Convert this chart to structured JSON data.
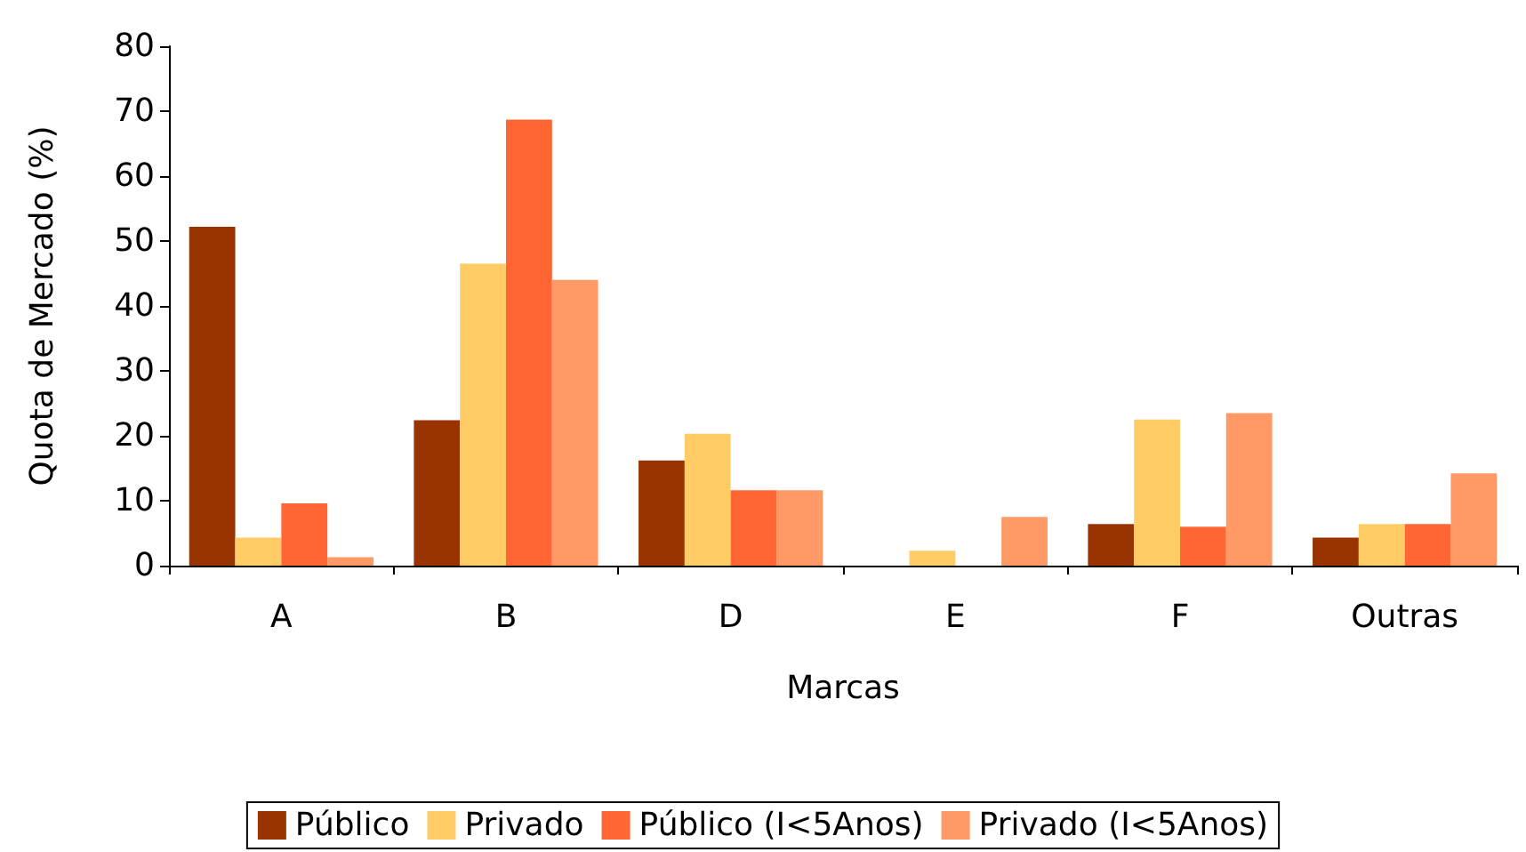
{
  "chart_data": {
    "type": "bar",
    "xlabel": "Marcas",
    "ylabel": "Quota de Mercado (%)",
    "categories": [
      "A",
      "B",
      "D",
      "E",
      "F",
      "Outras"
    ],
    "series": [
      {
        "name": "Público",
        "color": "#993300",
        "values": [
          52.2,
          22.4,
          16.2,
          0,
          6.4,
          4.3
        ]
      },
      {
        "name": "Privado",
        "color": "#ffcc66",
        "values": [
          4.3,
          46.5,
          20.3,
          2.3,
          22.5,
          6.4
        ]
      },
      {
        "name": "Público (I<5Anos)",
        "color": "#ff6633",
        "values": [
          9.6,
          68.7,
          11.6,
          0,
          6.0,
          6.4
        ]
      },
      {
        "name": "Privado (I<5Anos)",
        "color": "#ff9966",
        "values": [
          1.3,
          44.0,
          11.6,
          7.5,
          23.5,
          14.2
        ]
      }
    ],
    "ylim": [
      0,
      80
    ],
    "yticks": [
      0,
      10,
      20,
      30,
      40,
      50,
      60,
      70,
      80
    ],
    "grid": false,
    "legend": "bottom"
  }
}
